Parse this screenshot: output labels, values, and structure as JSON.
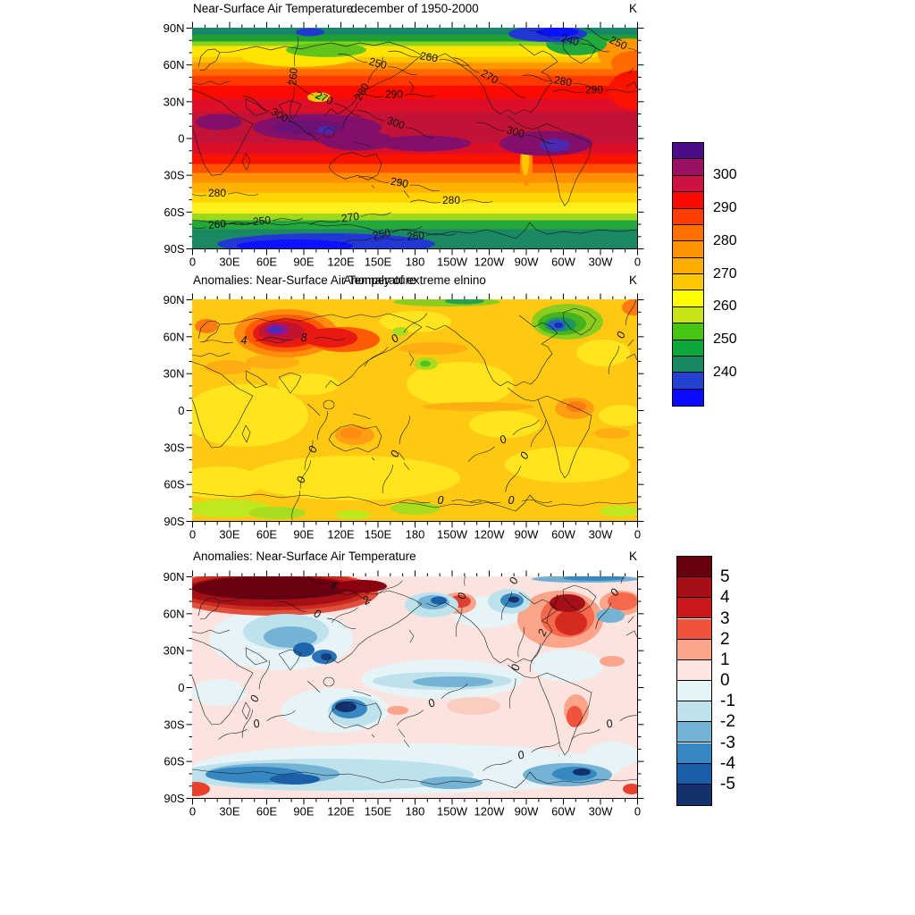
{
  "figure_bg": "#FFFFFF",
  "chart_data": {
    "type": "heatmap",
    "subtype": "filled-contour-global-maps",
    "panels": [
      {
        "name": "near-surface-air-temperature",
        "title_left": "Near-Surface Air Temperature",
        "title_center": "december of 1950-2000",
        "units": "K",
        "x_ticks": [
          "0",
          "30E",
          "60E",
          "90E",
          "120E",
          "150E",
          "180",
          "150W",
          "120W",
          "90W",
          "60W",
          "30W",
          "0"
        ],
        "y_ticks": [
          "90N",
          "60N",
          "30N",
          "0",
          "30S",
          "60S",
          "90S"
        ],
        "contour_levels": {
          "min": 235,
          "max": 305,
          "step": 5
        },
        "contour_labels": [
          {
            "t": "260",
            "x": 113,
            "y": 55,
            "r": -85
          },
          {
            "t": "250",
            "x": 208,
            "y": 40,
            "r": 15
          },
          {
            "t": "270",
            "x": 148,
            "y": 79,
            "r": 25
          },
          {
            "t": "280",
            "x": 190,
            "y": 72,
            "r": -60
          },
          {
            "t": "290",
            "x": 226,
            "y": 75,
            "r": 0
          },
          {
            "t": "300",
            "x": 98,
            "y": 98,
            "r": 30
          },
          {
            "t": "300",
            "x": 228,
            "y": 107,
            "r": 20
          },
          {
            "t": "260",
            "x": 265,
            "y": 33,
            "r": 10
          },
          {
            "t": "270",
            "x": 333,
            "y": 55,
            "r": 30
          },
          {
            "t": "280",
            "x": 415,
            "y": 60,
            "r": 10
          },
          {
            "t": "240",
            "x": 423,
            "y": 14,
            "r": 15
          },
          {
            "t": "250",
            "x": 477,
            "y": 17,
            "r": 25
          },
          {
            "t": "290",
            "x": 450,
            "y": 70,
            "r": 0
          },
          {
            "t": "300",
            "x": 362,
            "y": 117,
            "r": 15
          },
          {
            "t": "280",
            "x": 28,
            "y": 186,
            "r": 0
          },
          {
            "t": "290",
            "x": 232,
            "y": 174,
            "r": 10
          },
          {
            "t": "280",
            "x": 290,
            "y": 194,
            "r": 0
          },
          {
            "t": "270",
            "x": 177,
            "y": 213,
            "r": -8
          },
          {
            "t": "260",
            "x": 28,
            "y": 221,
            "r": -5
          },
          {
            "t": "250",
            "x": 78,
            "y": 217,
            "r": -5
          },
          {
            "t": "250",
            "x": 212,
            "y": 232,
            "r": -12
          },
          {
            "t": "260",
            "x": 250,
            "y": 234,
            "r": -5
          }
        ]
      },
      {
        "name": "anomalies-extreme-elnino",
        "title_left": "Anomalies: Near-Surface Air Temperature",
        "title_center": "Anomaly of extreme elnino",
        "units": "K",
        "x_ticks": [
          "0",
          "30E",
          "60E",
          "90E",
          "120E",
          "150E",
          "180",
          "150W",
          "120W",
          "90W",
          "60W",
          "30W",
          "0"
        ],
        "y_ticks": [
          "90N",
          "60N",
          "30N",
          "0",
          "30S",
          "60S",
          "90S"
        ],
        "contour_labels": [
          {
            "t": "4",
            "x": 58,
            "y": 46,
            "r": 0
          },
          {
            "t": "8",
            "x": 125,
            "y": 43,
            "r": 0
          },
          {
            "t": "0",
            "x": 227,
            "y": 44,
            "r": -40
          },
          {
            "t": "0",
            "x": 480,
            "y": 40,
            "r": -70
          },
          {
            "t": "0",
            "x": 135,
            "y": 168,
            "r": -70
          },
          {
            "t": "0",
            "x": 227,
            "y": 173,
            "r": -70
          },
          {
            "t": "0",
            "x": 348,
            "y": 157,
            "r": -30
          },
          {
            "t": "0",
            "x": 372,
            "y": 175,
            "r": -60
          },
          {
            "t": "0",
            "x": 122,
            "y": 202,
            "r": -75
          },
          {
            "t": "0",
            "x": 278,
            "y": 225,
            "r": 0
          },
          {
            "t": "0",
            "x": 357,
            "y": 225,
            "r": 0
          }
        ]
      },
      {
        "name": "anomalies",
        "title_left": "Anomalies: Near-Surface Air Temperature",
        "title_center": "",
        "units": "K",
        "x_ticks": [
          "0",
          "30E",
          "60E",
          "90E",
          "120E",
          "150E",
          "180",
          "150W",
          "120W",
          "90W",
          "60W",
          "30W",
          "0"
        ],
        "y_ticks": [
          "90N",
          "60N",
          "30N",
          "0",
          "30S",
          "60S",
          "90S"
        ],
        "contour_labels": [
          {
            "t": "4",
            "x": 158,
            "y": 10,
            "r": 20
          },
          {
            "t": "2",
            "x": 195,
            "y": 27,
            "r": -30
          },
          {
            "t": "0",
            "x": 140,
            "y": 42,
            "r": 20
          },
          {
            "t": "0",
            "x": 360,
            "y": 5,
            "r": -70
          },
          {
            "t": "0",
            "x": 302,
            "y": 22,
            "r": -80
          },
          {
            "t": "2",
            "x": 392,
            "y": 63,
            "r": -70
          },
          {
            "t": "0",
            "x": 362,
            "y": 102,
            "r": -80
          },
          {
            "t": "0",
            "x": 70,
            "y": 137,
            "r": -70
          },
          {
            "t": "0",
            "x": 72,
            "y": 165,
            "r": -20
          },
          {
            "t": "0",
            "x": 268,
            "y": 142,
            "r": -30
          },
          {
            "t": "0",
            "x": 368,
            "y": 200,
            "r": -20
          },
          {
            "t": "0",
            "x": 467,
            "y": 165,
            "r": -20
          },
          {
            "t": "0",
            "x": 473,
            "y": 18,
            "r": -60
          }
        ]
      }
    ],
    "colorbars": [
      {
        "for": "near-surface-air-temperature",
        "tick_labels": [
          "300",
          "290",
          "280",
          "270",
          "260",
          "250",
          "240"
        ],
        "label_start_boundary": 2,
        "label_stride": 2,
        "colors": [
          "#4A0D86",
          "#9A1063",
          "#CD1140",
          "#FA0A00",
          "#FF3D00",
          "#FF7000",
          "#FF9300",
          "#FFAE00",
          "#FFC700",
          "#FFFF00",
          "#C8E416",
          "#48C414",
          "#0CA63A",
          "#178A62",
          "#2442D2",
          "#0A0AFF"
        ]
      },
      {
        "for": "anomalies",
        "tick_labels": [
          "5",
          "4",
          "3",
          "2",
          "1",
          "0",
          "-1",
          "-2",
          "-3",
          "-4",
          "-5"
        ],
        "label_start_boundary": 1,
        "label_stride": 1,
        "colors": [
          "#67000D",
          "#A50F15",
          "#CB181D",
          "#F0533B",
          "#FAA58A",
          "#FCE4DF",
          "#E5F4F8",
          "#BEE2EB",
          "#75B3D5",
          "#3787C1",
          "#195EA8",
          "#12316D"
        ]
      }
    ]
  }
}
